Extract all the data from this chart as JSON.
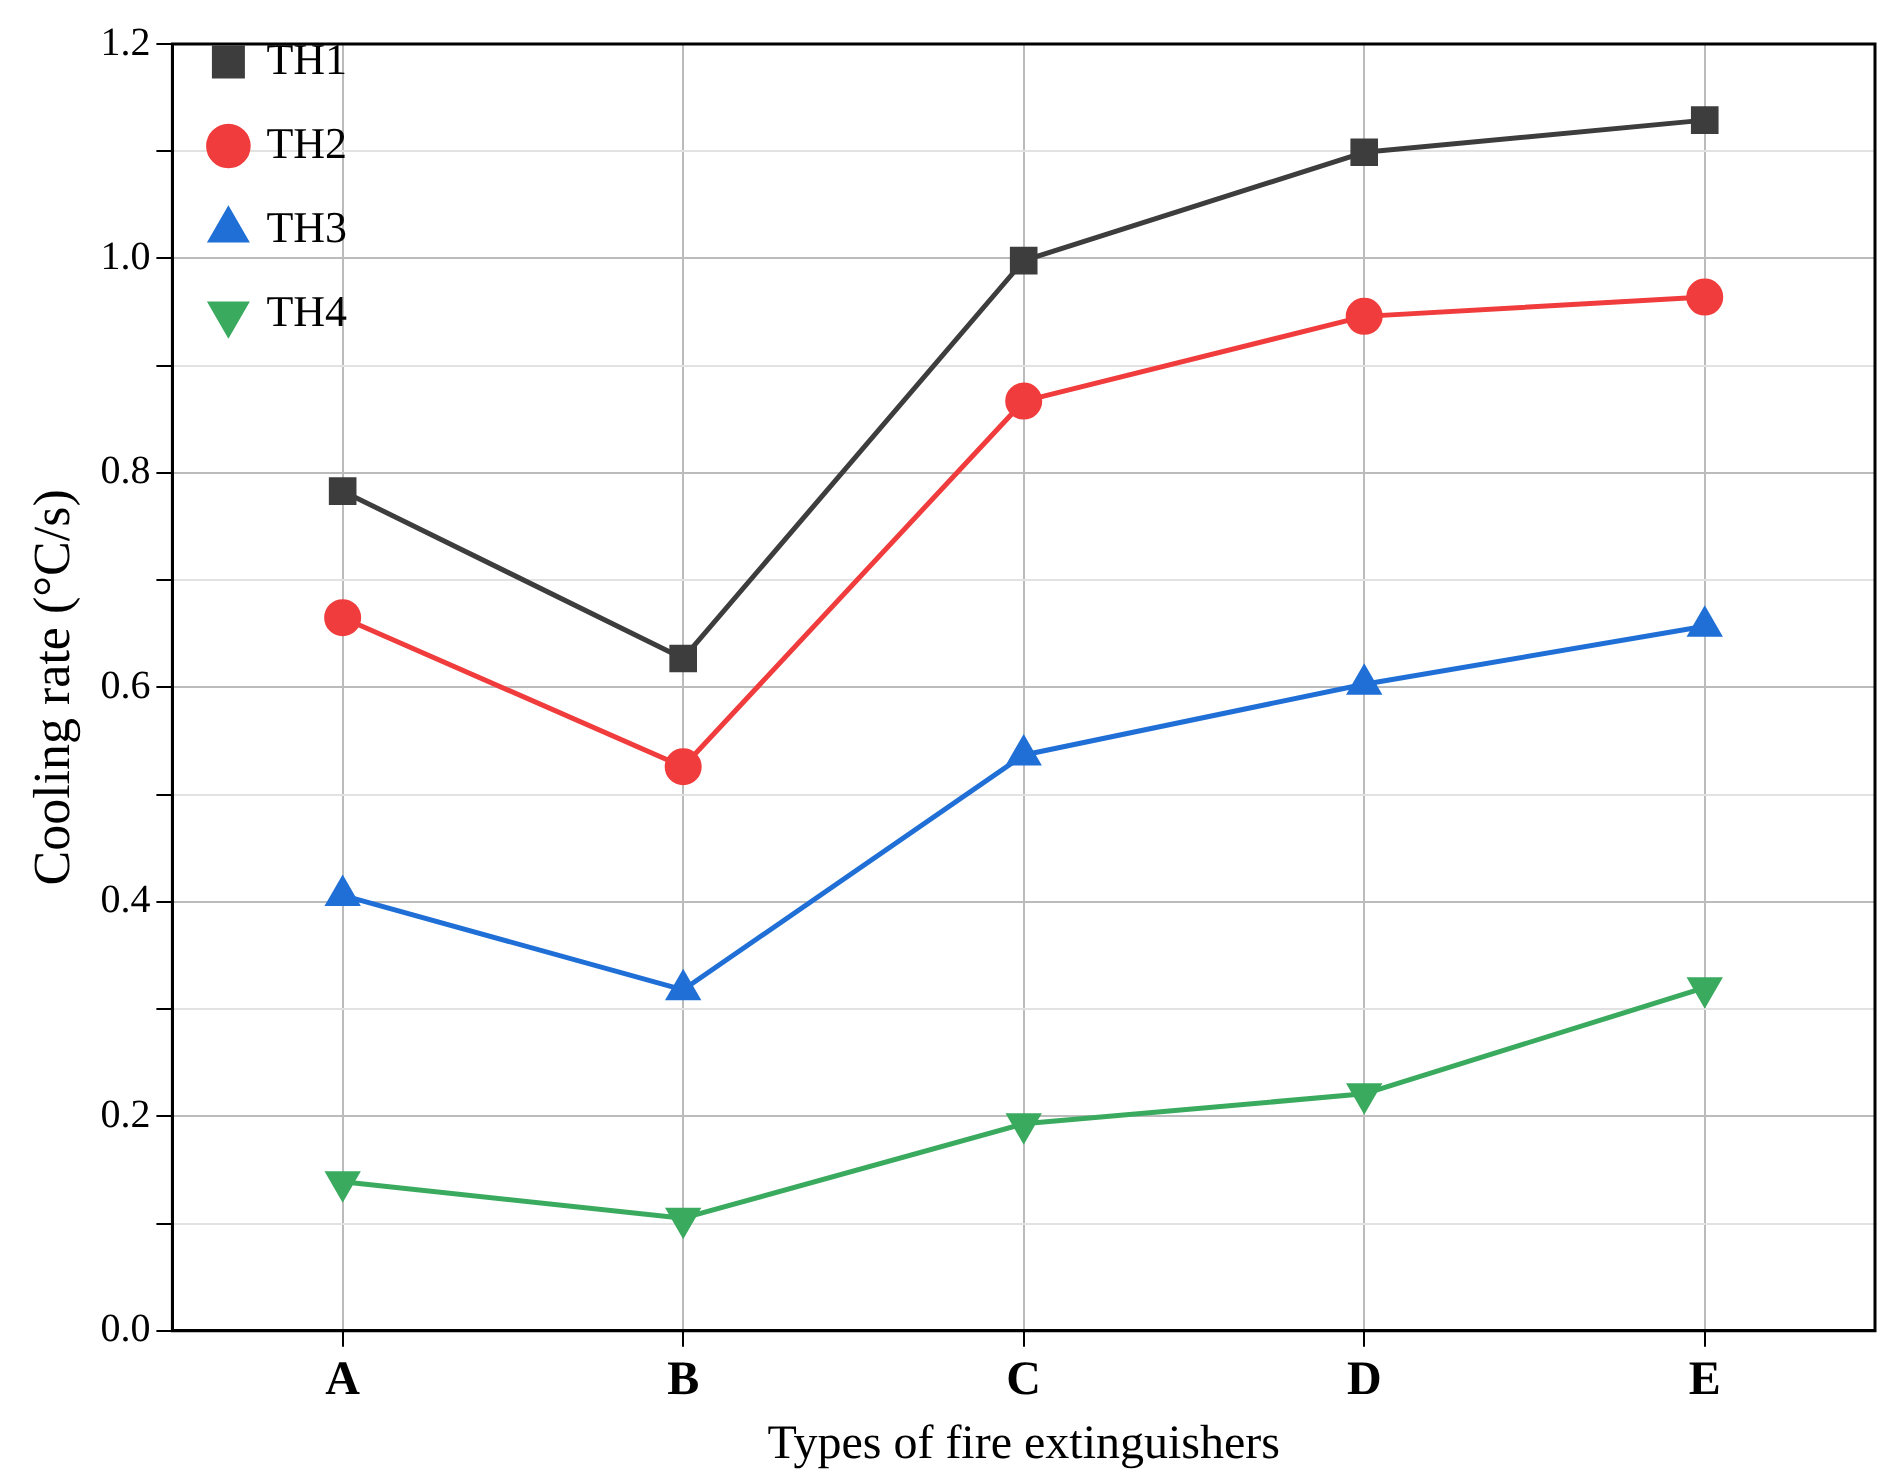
{
  "chart_data": {
    "type": "line",
    "xlabel": "Types of fire extinguishers",
    "ylabel": "Cooling rate (°C/s)",
    "categories": [
      "A",
      "B",
      "C",
      "D",
      "E"
    ],
    "series": [
      {
        "name": "TH1",
        "color": "#3d3d3d",
        "marker": "square",
        "values": [
          0.783,
          0.627,
          0.998,
          1.099,
          1.129
        ]
      },
      {
        "name": "TH2",
        "color": "#f03c3c",
        "marker": "circle",
        "values": [
          0.665,
          0.526,
          0.867,
          0.946,
          0.964
        ]
      },
      {
        "name": "TH3",
        "color": "#1f6fd6",
        "marker": "triangle",
        "values": [
          0.406,
          0.318,
          0.537,
          0.603,
          0.657
        ]
      },
      {
        "name": "TH4",
        "color": "#3aaa5f",
        "marker": "triangle_down",
        "values": [
          0.139,
          0.105,
          0.193,
          0.221,
          0.32
        ]
      }
    ],
    "ylim": [
      0,
      1.2
    ],
    "yticks": [
      {
        "value": 0,
        "label": "0.0"
      },
      {
        "value": 0.1,
        "label": null
      },
      {
        "value": 0.2,
        "label": "0.2"
      },
      {
        "value": 0.3,
        "label": null
      },
      {
        "value": 0.4,
        "label": "0.4"
      },
      {
        "value": 0.5,
        "label": null
      },
      {
        "value": 0.6,
        "label": "0.6"
      },
      {
        "value": 0.7,
        "label": null
      },
      {
        "value": 0.8,
        "label": "0.8"
      },
      {
        "value": 0.9,
        "label": null
      },
      {
        "value": 1.0,
        "label": "1.0"
      },
      {
        "value": 1.1,
        "label": null
      },
      {
        "value": 1.2,
        "label": "1.2"
      }
    ],
    "grid": true,
    "legend": "top left",
    "line_style": "solid"
  }
}
